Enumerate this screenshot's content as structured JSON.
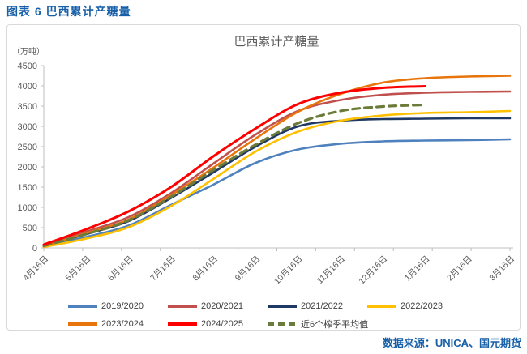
{
  "page": {
    "header": "图表 6 巴西累计产糖量",
    "source": "数据来源：UNICA、国元期货"
  },
  "chart_data": {
    "type": "line",
    "title": "巴西累计产糖量",
    "unit_label": "（万吨）",
    "categories": [
      "4月16日",
      "5月16日",
      "6月16日",
      "7月16日",
      "8月16日",
      "9月16日",
      "10月16日",
      "11月16日",
      "12月16日",
      "1月16日",
      "2月16日",
      "3月16日"
    ],
    "ylim": [
      0,
      4500
    ],
    "yticks": [
      0,
      500,
      1000,
      1500,
      2000,
      2500,
      3000,
      3500,
      4000,
      4500
    ],
    "grid": false,
    "legend_position": "bottom",
    "series": [
      {
        "name": "2019/2020",
        "color": "#4E81BD",
        "dash": false,
        "values": [
          30,
          270,
          550,
          1060,
          1560,
          2100,
          2430,
          2570,
          2630,
          2650,
          2660,
          2680
        ]
      },
      {
        "name": "2020/2021",
        "color": "#C0504D",
        "dash": false,
        "values": [
          60,
          400,
          760,
          1350,
          2080,
          2800,
          3380,
          3650,
          3780,
          3830,
          3850,
          3860
        ]
      },
      {
        "name": "2021/2022",
        "color": "#1F3864",
        "dash": false,
        "values": [
          50,
          340,
          660,
          1230,
          1860,
          2500,
          3000,
          3140,
          3180,
          3190,
          3200,
          3200
        ]
      },
      {
        "name": "2022/2023",
        "color": "#FFC000",
        "dash": false,
        "values": [
          20,
          230,
          510,
          1030,
          1700,
          2380,
          2870,
          3140,
          3270,
          3330,
          3350,
          3380
        ]
      },
      {
        "name": "2023/2024",
        "color": "#E8750C",
        "dash": false,
        "values": [
          40,
          360,
          700,
          1300,
          1980,
          2700,
          3360,
          3800,
          4080,
          4190,
          4230,
          4250
        ]
      },
      {
        "name": "2024/2025",
        "color": "#FF0000",
        "dash": false,
        "values": [
          80,
          460,
          900,
          1500,
          2260,
          2950,
          3550,
          3830,
          3950,
          3990
        ]
      },
      {
        "name": "近6个榨季平均值",
        "color": "#6B7C3A",
        "dash": true,
        "values": [
          50,
          340,
          680,
          1260,
          1920,
          2550,
          3080,
          3380,
          3490,
          3530
        ]
      }
    ]
  }
}
